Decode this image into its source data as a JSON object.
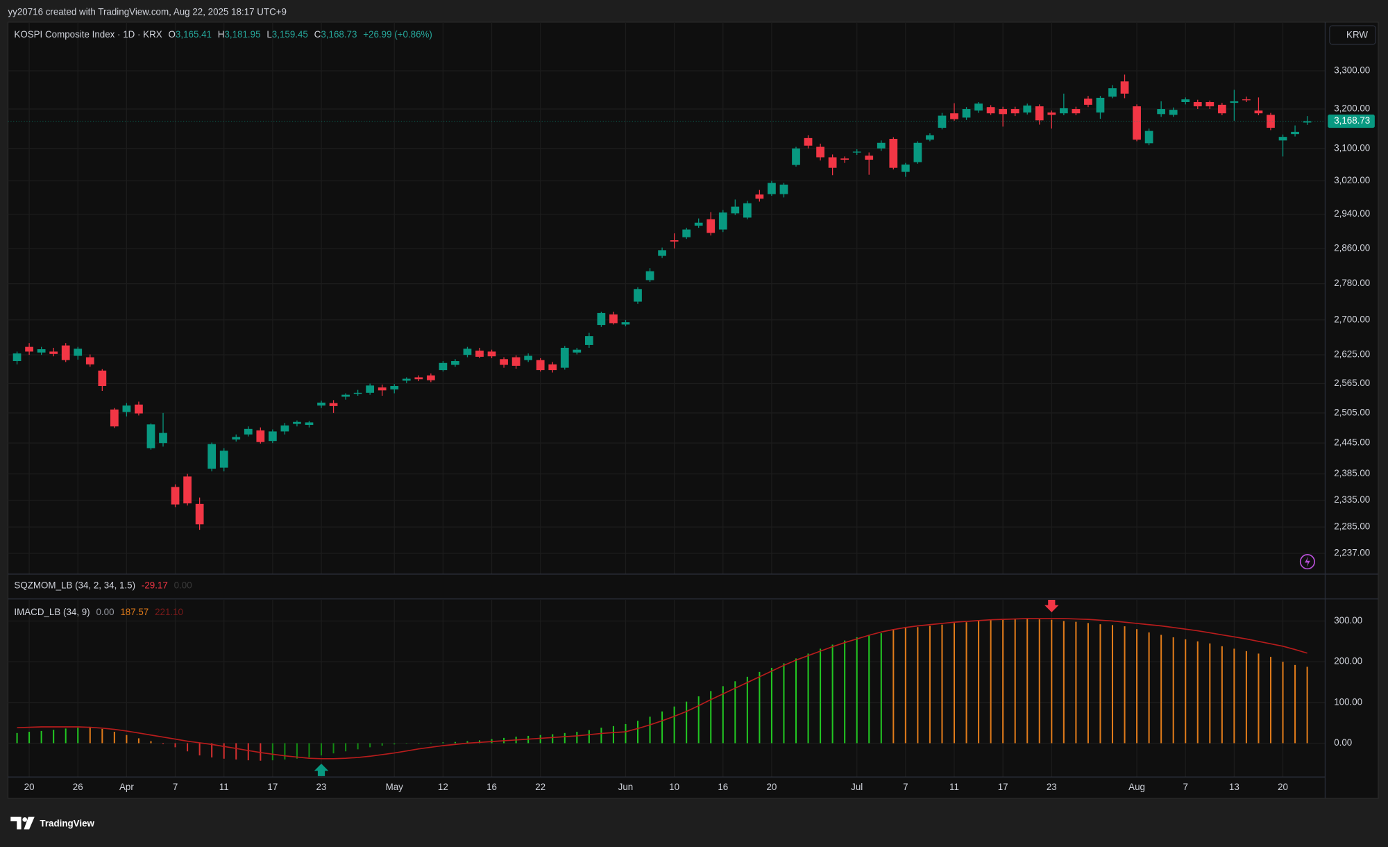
{
  "header": {
    "caption": "yy20716 created with TradingView.com, Aug 22, 2025 18:17 UTC+9"
  },
  "legend": {
    "symbol": "KOSPI Composite Index · 1D · KRX",
    "o_key": "O",
    "open": "3,165.41",
    "h_key": "H",
    "high": "3,181.95",
    "l_key": "L",
    "low": "3,159.45",
    "c_key": "C",
    "close": "3,168.73",
    "change": "+26.99 (+0.86%)"
  },
  "currency_button": "KRW",
  "indicators": {
    "sqzmom": {
      "name": "SQZMOM_LB (34, 2, 34, 1.5)",
      "values": [
        "-29.17",
        "0.00"
      ]
    },
    "imacd": {
      "name": "IMACD_LB (34, 9)",
      "values": [
        "0.00",
        "187.57",
        "221.10"
      ]
    }
  },
  "brand": "TradingView",
  "chart_data": [
    {
      "type": "candlestick",
      "log": true,
      "grid": true,
      "up_color": "#089981",
      "down_color": "#f23645",
      "ylim": [
        2200,
        3432
      ],
      "yticks": [
        {
          "value": 3300,
          "label": "3,300.00"
        },
        {
          "value": 3200,
          "label": "3,200.00"
        },
        {
          "value": 3100,
          "label": "3,100.00"
        },
        {
          "value": 3020,
          "label": "3,020.00"
        },
        {
          "value": 2940,
          "label": "2,940.00"
        },
        {
          "value": 2860,
          "label": "2,860.00"
        },
        {
          "value": 2780,
          "label": "2,780.00"
        },
        {
          "value": 2700,
          "label": "2,700.00"
        },
        {
          "value": 2625,
          "label": "2,625.00"
        },
        {
          "value": 2565,
          "label": "2,565.00"
        },
        {
          "value": 2505,
          "label": "2,505.00"
        },
        {
          "value": 2445,
          "label": "2,445.00"
        },
        {
          "value": 2385,
          "label": "2,385.00"
        },
        {
          "value": 2335,
          "label": "2,335.00"
        },
        {
          "value": 2285,
          "label": "2,285.00"
        },
        {
          "value": 2237,
          "label": "2,237.00"
        }
      ],
      "last_price": {
        "value": 3168.73,
        "label": "3,168.73"
      },
      "open": [
        2612,
        2642,
        2630,
        2632,
        2645,
        2623,
        2620,
        2592,
        2512,
        2507,
        2522,
        2435,
        2445,
        2360,
        2380,
        2328,
        2395,
        2397,
        2452,
        2462,
        2470,
        2449,
        2468,
        2483,
        2481,
        2520,
        2525,
        2538,
        2544,
        2546,
        2557,
        2553,
        2571,
        2578,
        2582,
        2593,
        2604,
        2625,
        2634,
        2632,
        2616,
        2620,
        2614,
        2614,
        2605,
        2598,
        2630,
        2646,
        2689,
        2712,
        2690,
        2740,
        2788,
        2843,
        2879,
        2886,
        2913,
        2928,
        2904,
        2942,
        2932,
        2987,
        2988,
        2988,
        3059,
        3126,
        3104,
        3078,
        3075,
        3090,
        3082,
        3100,
        3124,
        3042,
        3066,
        3122,
        3152,
        3189,
        3178,
        3196,
        3205,
        3200,
        3200,
        3191,
        3207,
        3191,
        3189,
        3200,
        3227,
        3191,
        3232,
        3272,
        3207,
        3113,
        3187,
        3185,
        3218,
        3218,
        3218,
        3211,
        3216,
        3225,
        3196,
        3185,
        3120,
        3136,
        3165.41
      ],
      "high": [
        2632,
        2650,
        2642,
        2640,
        2650,
        2642,
        2626,
        2595,
        2515,
        2525,
        2528,
        2484,
        2505,
        2365,
        2385,
        2340,
        2446,
        2435,
        2462,
        2478,
        2476,
        2472,
        2485,
        2490,
        2489,
        2530,
        2531,
        2545,
        2552,
        2565,
        2563,
        2564,
        2578,
        2582,
        2586,
        2612,
        2616,
        2642,
        2640,
        2636,
        2620,
        2624,
        2628,
        2618,
        2610,
        2644,
        2640,
        2672,
        2718,
        2718,
        2700,
        2772,
        2815,
        2862,
        2895,
        2908,
        2930,
        2945,
        2950,
        2975,
        2972,
        2998,
        3020,
        3015,
        3104,
        3133,
        3112,
        3085,
        3080,
        3098,
        3090,
        3120,
        3128,
        3064,
        3118,
        3138,
        3190,
        3215,
        3205,
        3218,
        3210,
        3206,
        3206,
        3214,
        3212,
        3196,
        3240,
        3206,
        3234,
        3234,
        3262,
        3290,
        3212,
        3150,
        3220,
        3204,
        3230,
        3224,
        3222,
        3216,
        3250,
        3232,
        3230,
        3190,
        3135,
        3158,
        3181.95
      ],
      "low": [
        2605,
        2625,
        2625,
        2622,
        2610,
        2615,
        2600,
        2550,
        2475,
        2498,
        2500,
        2432,
        2438,
        2322,
        2325,
        2280,
        2390,
        2390,
        2448,
        2458,
        2444,
        2445,
        2462,
        2478,
        2476,
        2515,
        2505,
        2532,
        2540,
        2542,
        2540,
        2545,
        2566,
        2570,
        2568,
        2590,
        2600,
        2620,
        2618,
        2618,
        2598,
        2596,
        2610,
        2590,
        2588,
        2594,
        2626,
        2640,
        2685,
        2690,
        2686,
        2735,
        2784,
        2838,
        2860,
        2882,
        2908,
        2890,
        2898,
        2938,
        2928,
        2970,
        2984,
        2980,
        3055,
        3100,
        3070,
        3034,
        3064,
        3084,
        3035,
        3094,
        3048,
        3030,
        3062,
        3118,
        3148,
        3170,
        3172,
        3190,
        3185,
        3155,
        3182,
        3186,
        3160,
        3150,
        3184,
        3184,
        3205,
        3175,
        3228,
        3228,
        3118,
        3108,
        3180,
        3180,
        3212,
        3200,
        3200,
        3184,
        3170,
        3218,
        3184,
        3146,
        3080,
        3130,
        3159.45
      ],
      "close": [
        2628,
        2632,
        2637,
        2627,
        2614,
        2638,
        2605,
        2560,
        2478,
        2520,
        2504,
        2482,
        2465,
        2327,
        2329,
        2290,
        2443,
        2430,
        2457,
        2473,
        2447,
        2468,
        2480,
        2487,
        2486,
        2526,
        2519,
        2542,
        2546,
        2561,
        2551,
        2560,
        2575,
        2574,
        2572,
        2608,
        2612,
        2638,
        2621,
        2622,
        2604,
        2602,
        2623,
        2593,
        2593,
        2640,
        2636,
        2665,
        2715,
        2693,
        2695,
        2768,
        2808,
        2856,
        2876,
        2904,
        2920,
        2896,
        2944,
        2958,
        2966,
        2977,
        3015,
        3011,
        3100,
        3107,
        3078,
        3052,
        3072,
        3092,
        3072,
        3114,
        3052,
        3060,
        3114,
        3133,
        3183,
        3174,
        3200,
        3214,
        3189,
        3187,
        3189,
        3209,
        3171,
        3185,
        3202,
        3189,
        3211,
        3229,
        3254,
        3240,
        3122,
        3144,
        3200,
        3198,
        3225,
        3207,
        3207,
        3189,
        3220,
        3223,
        3189,
        3152,
        3129,
        3141.74,
        3168.73
      ]
    },
    {
      "type": "bar",
      "grid": true,
      "ylim": [
        -83,
        352
      ],
      "yticks": [
        {
          "value": 300,
          "label": "300.00"
        },
        {
          "value": 200,
          "label": "200.00"
        },
        {
          "value": 100,
          "label": "100.00"
        },
        {
          "value": 0,
          "label": "0.00"
        }
      ],
      "categories": [
        null,
        "20",
        null,
        null,
        null,
        "26",
        null,
        null,
        null,
        "Apr",
        null,
        null,
        null,
        "7",
        null,
        null,
        null,
        "11",
        null,
        null,
        null,
        "17",
        null,
        null,
        null,
        "23",
        null,
        null,
        null,
        null,
        null,
        "May",
        null,
        null,
        null,
        "12",
        null,
        null,
        null,
        "16",
        null,
        null,
        null,
        "22",
        null,
        null,
        null,
        null,
        null,
        null,
        "Jun",
        null,
        null,
        null,
        "10",
        null,
        null,
        null,
        "16",
        null,
        null,
        null,
        "20",
        null,
        null,
        null,
        null,
        null,
        null,
        "Jul",
        null,
        null,
        null,
        "7",
        null,
        null,
        null,
        "11",
        null,
        null,
        null,
        "17",
        null,
        null,
        null,
        "23",
        null,
        null,
        null,
        null,
        null,
        null,
        "Aug",
        null,
        null,
        null,
        "7",
        null,
        null,
        null,
        "13",
        null,
        null,
        null,
        "20",
        null,
        null
      ],
      "series": [
        {
          "type": "bar",
          "values": [
            25,
            28,
            30,
            33,
            36,
            38,
            38,
            35,
            28,
            20,
            12,
            5,
            -2,
            -10,
            -20,
            -30,
            -35,
            -38,
            -40,
            -42,
            -43,
            -42,
            -40,
            -38,
            -35,
            -30,
            -25,
            -20,
            -15,
            -10,
            -6,
            -3,
            -1,
            0,
            1,
            2,
            3,
            5,
            7,
            10,
            13,
            16,
            18,
            20,
            22,
            25,
            28,
            32,
            38,
            42,
            47,
            55,
            65,
            78,
            90,
            102,
            115,
            128,
            140,
            152,
            163,
            175,
            185,
            196,
            208,
            220,
            232,
            242,
            252,
            260,
            266,
            270,
            280,
            283,
            285,
            288,
            291,
            295,
            297,
            300,
            303,
            304,
            305,
            305,
            304,
            303,
            300,
            298,
            295,
            292,
            290,
            287,
            280,
            272,
            266,
            260,
            255,
            250,
            245,
            238,
            232,
            226,
            220,
            212,
            200,
            192,
            187.57
          ],
          "colors": [
            "#22c722",
            "#22c722",
            "#22c722",
            "#22c722",
            "#22c722",
            "#22c722",
            "#e07b1a",
            "#e07b1a",
            "#e07b1a",
            "#e07b1a",
            "#e07b1a",
            "#e07b1a",
            "#d32f2f",
            "#d32f2f",
            "#d32f2f",
            "#d32f2f",
            "#d32f2f",
            "#d32f2f",
            "#d32f2f",
            "#d32f2f",
            "#d32f2f",
            "#138a13",
            "#138a13",
            "#138a13",
            "#138a13",
            "#138a13",
            "#138a13",
            "#138a13",
            "#138a13",
            "#138a13",
            "#138a13",
            "#138a13",
            "#138a13",
            "#22c722",
            "#22c722",
            "#22c722",
            "#22c722",
            "#22c722",
            "#22c722",
            "#22c722",
            "#22c722",
            "#22c722",
            "#22c722",
            "#22c722",
            "#22c722",
            "#22c722",
            "#22c722",
            "#22c722",
            "#22c722",
            "#22c722",
            "#22c722",
            "#22c722",
            "#22c722",
            "#22c722",
            "#22c722",
            "#22c722",
            "#22c722",
            "#22c722",
            "#22c722",
            "#22c722",
            "#22c722",
            "#22c722",
            "#22c722",
            "#22c722",
            "#22c722",
            "#22c722",
            "#22c722",
            "#22c722",
            "#22c722",
            "#22c722",
            "#22c722",
            "#22c722",
            "#e07b1a",
            "#e07b1a",
            "#e07b1a",
            "#e07b1a",
            "#e07b1a",
            "#e07b1a",
            "#e07b1a",
            "#e07b1a",
            "#e07b1a",
            "#e07b1a",
            "#e07b1a",
            "#e07b1a",
            "#e07b1a",
            "#e07b1a",
            "#e07b1a",
            "#e07b1a",
            "#e07b1a",
            "#e07b1a",
            "#e07b1a",
            "#e07b1a",
            "#e07b1a",
            "#e07b1a",
            "#e07b1a",
            "#e07b1a",
            "#e07b1a",
            "#e07b1a",
            "#e07b1a",
            "#e07b1a",
            "#e07b1a",
            "#e07b1a",
            "#e07b1a",
            "#e07b1a",
            "#e07b1a",
            "#e07b1a",
            "#e07b1a"
          ]
        },
        {
          "type": "line",
          "color": "#b71c1c",
          "values": [
            38,
            39,
            40,
            40,
            40,
            40,
            39,
            37,
            34,
            30,
            25,
            20,
            15,
            10,
            5,
            1,
            -3,
            -8,
            -13,
            -18,
            -23,
            -27,
            -31,
            -34,
            -37,
            -38,
            -38,
            -37,
            -35,
            -32,
            -28,
            -24,
            -19,
            -14,
            -10,
            -6,
            -3,
            0,
            2,
            4,
            6,
            8,
            10,
            12,
            14,
            16,
            18,
            21,
            24,
            26,
            28,
            36,
            45,
            55,
            66,
            78,
            92,
            107,
            121,
            135,
            149,
            163,
            177,
            191,
            204,
            215,
            226,
            237,
            247,
            256,
            265,
            273,
            279,
            284,
            288,
            291,
            294,
            297,
            299,
            301,
            303,
            304,
            305,
            306,
            306,
            306,
            306,
            305,
            304,
            302,
            300,
            297,
            294,
            291,
            288,
            284,
            280,
            276,
            271,
            266,
            261,
            256,
            250,
            244,
            238,
            230,
            221.1
          ]
        }
      ]
    }
  ]
}
